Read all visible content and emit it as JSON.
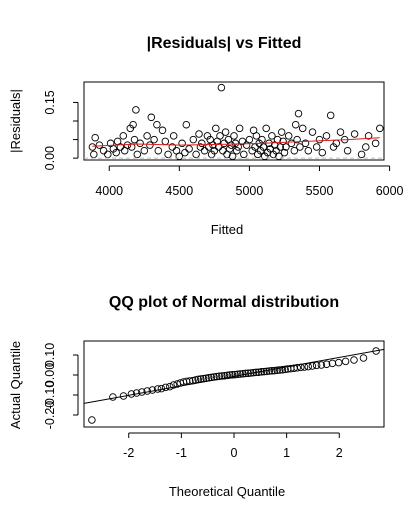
{
  "chart_data": [
    {
      "type": "scatter",
      "title": "|Residuals| vs Fitted",
      "xlabel": "Fitted",
      "ylabel": "|Residuals|",
      "xlim": [
        3820,
        5960
      ],
      "ylim": [
        -0.005,
        0.205
      ],
      "x_ticks": [
        4000,
        4500,
        5000,
        5500,
        6000
      ],
      "x_tick_labels": [
        "4000",
        "4500",
        "5000",
        "5500",
        "6000"
      ],
      "y_ticks": [
        0.0,
        0.05,
        0.1,
        0.15
      ],
      "y_tick_labels": [
        "0.00",
        "",
        "",
        "0.15"
      ],
      "series": [
        {
          "name": "residuals",
          "points": [
            [
              3880,
              0.03
            ],
            [
              3890,
              0.01
            ],
            [
              3900,
              0.055
            ],
            [
              3930,
              0.035
            ],
            [
              3960,
              0.02
            ],
            [
              3990,
              0.01
            ],
            [
              4010,
              0.04
            ],
            [
              4030,
              0.025
            ],
            [
              4050,
              0.015
            ],
            [
              4060,
              0.045
            ],
            [
              4080,
              0.03
            ],
            [
              4100,
              0.06
            ],
            [
              4110,
              0.02
            ],
            [
              4130,
              0.035
            ],
            [
              4150,
              0.08
            ],
            [
              4160,
              0.03
            ],
            [
              4170,
              0.09
            ],
            [
              4180,
              0.05
            ],
            [
              4190,
              0.13
            ],
            [
              4200,
              0.01
            ],
            [
              4220,
              0.04
            ],
            [
              4250,
              0.02
            ],
            [
              4270,
              0.06
            ],
            [
              4290,
              0.035
            ],
            [
              4300,
              0.11
            ],
            [
              4320,
              0.05
            ],
            [
              4340,
              0.09
            ],
            [
              4350,
              0.02
            ],
            [
              4380,
              0.075
            ],
            [
              4400,
              0.045
            ],
            [
              4420,
              0.01
            ],
            [
              4450,
              0.03
            ],
            [
              4460,
              0.06
            ],
            [
              4480,
              0.02
            ],
            [
              4500,
              0.005
            ],
            [
              4520,
              0.04
            ],
            [
              4540,
              0.015
            ],
            [
              4550,
              0.09
            ],
            [
              4570,
              0.025
            ],
            [
              4600,
              0.05
            ],
            [
              4620,
              0.01
            ],
            [
              4640,
              0.065
            ],
            [
              4650,
              0.03
            ],
            [
              4660,
              0.04
            ],
            [
              4680,
              0.02
            ],
            [
              4700,
              0.06
            ],
            [
              4710,
              0.03
            ],
            [
              4720,
              0.05
            ],
            [
              4730,
              0.01
            ],
            [
              4740,
              0.035
            ],
            [
              4750,
              0.02
            ],
            [
              4760,
              0.08
            ],
            [
              4770,
              0.045
            ],
            [
              4780,
              0.03
            ],
            [
              4790,
              0.06
            ],
            [
              4800,
              0.19
            ],
            [
              4810,
              0.02
            ],
            [
              4820,
              0.04
            ],
            [
              4830,
              0.07
            ],
            [
              4840,
              0.01
            ],
            [
              4850,
              0.05
            ],
            [
              4860,
              0.025
            ],
            [
              4870,
              0.035
            ],
            [
              4880,
              0.005
            ],
            [
              4890,
              0.06
            ],
            [
              4900,
              0.04
            ],
            [
              4910,
              0.02
            ],
            [
              4920,
              0.03
            ],
            [
              4930,
              0.08
            ],
            [
              4950,
              0.045
            ],
            [
              4960,
              0.01
            ],
            [
              4980,
              0.035
            ],
            [
              5000,
              0.05
            ],
            [
              5020,
              0.02
            ],
            [
              5030,
              0.075
            ],
            [
              5040,
              0.03
            ],
            [
              5050,
              0.06
            ],
            [
              5060,
              0.01
            ],
            [
              5070,
              0.04
            ],
            [
              5080,
              0.02
            ],
            [
              5090,
              0.05
            ],
            [
              5100,
              0.03
            ],
            [
              5110,
              0.005
            ],
            [
              5120,
              0.08
            ],
            [
              5130,
              0.015
            ],
            [
              5140,
              0.04
            ],
            [
              5150,
              0.025
            ],
            [
              5160,
              0.06
            ],
            [
              5170,
              0.01
            ],
            [
              5180,
              0.035
            ],
            [
              5190,
              0.02
            ],
            [
              5200,
              0.05
            ],
            [
              5210,
              0.005
            ],
            [
              5220,
              0.03
            ],
            [
              5230,
              0.07
            ],
            [
              5240,
              0.045
            ],
            [
              5250,
              0.015
            ],
            [
              5260,
              0.03
            ],
            [
              5280,
              0.06
            ],
            [
              5300,
              0.04
            ],
            [
              5320,
              0.02
            ],
            [
              5330,
              0.09
            ],
            [
              5340,
              0.05
            ],
            [
              5350,
              0.12
            ],
            [
              5360,
              0.03
            ],
            [
              5380,
              0.08
            ],
            [
              5400,
              0.04
            ],
            [
              5420,
              0.02
            ],
            [
              5450,
              0.07
            ],
            [
              5480,
              0.03
            ],
            [
              5500,
              0.05
            ],
            [
              5520,
              0.015
            ],
            [
              5550,
              0.06
            ],
            [
              5580,
              0.115
            ],
            [
              5600,
              0.03
            ],
            [
              5620,
              0.04
            ],
            [
              5650,
              0.07
            ],
            [
              5680,
              0.05
            ],
            [
              5700,
              0.02
            ],
            [
              5750,
              0.065
            ],
            [
              5800,
              0.01
            ],
            [
              5830,
              0.03
            ],
            [
              5850,
              0.06
            ],
            [
              5900,
              0.04
            ],
            [
              5930,
              0.08
            ]
          ]
        },
        {
          "name": "smooth",
          "type": "line",
          "color": "#e31a1c",
          "points": [
            [
              3880,
              0.032
            ],
            [
              4200,
              0.038
            ],
            [
              4500,
              0.035
            ],
            [
              4800,
              0.037
            ],
            [
              5100,
              0.04
            ],
            [
              5400,
              0.045
            ],
            [
              5700,
              0.05
            ],
            [
              5930,
              0.055
            ]
          ]
        },
        {
          "name": "baseline",
          "type": "hline",
          "color": "#bbbbbb",
          "y": 0.0
        }
      ]
    },
    {
      "type": "scatter",
      "title": "QQ plot of Normal distribution",
      "xlabel": "Theoretical Quantile",
      "ylabel": "Actual Quantile",
      "xlim": [
        -2.85,
        2.85
      ],
      "ylim": [
        -0.26,
        0.17
      ],
      "x_ticks": [
        -2,
        -1,
        0,
        1,
        2
      ],
      "x_tick_labels": [
        "-2",
        "-1",
        "0",
        "1",
        "2"
      ],
      "y_ticks": [
        -0.2,
        -0.1,
        0.0,
        0.1
      ],
      "y_tick_labels": [
        "-0.20",
        "-0.10",
        "0.00",
        "0.10"
      ],
      "series": [
        {
          "name": "sample_quantiles",
          "points": [
            [
              -2.7,
              -0.225
            ],
            [
              -2.3,
              -0.11
            ],
            [
              -2.1,
              -0.105
            ],
            [
              -1.95,
              -0.095
            ],
            [
              -1.85,
              -0.09
            ],
            [
              -1.75,
              -0.085
            ],
            [
              -1.65,
              -0.08
            ],
            [
              -1.55,
              -0.075
            ],
            [
              -1.45,
              -0.07
            ],
            [
              -1.38,
              -0.068
            ],
            [
              -1.3,
              -0.062
            ],
            [
              -1.22,
              -0.058
            ],
            [
              -1.15,
              -0.05
            ],
            [
              -1.08,
              -0.045
            ],
            [
              -1.02,
              -0.04
            ],
            [
              -0.96,
              -0.035
            ],
            [
              -0.9,
              -0.032
            ],
            [
              -0.84,
              -0.03
            ],
            [
              -0.78,
              -0.028
            ],
            [
              -0.73,
              -0.025
            ],
            [
              -0.68,
              -0.022
            ],
            [
              -0.63,
              -0.02
            ],
            [
              -0.58,
              -0.018
            ],
            [
              -0.53,
              -0.016
            ],
            [
              -0.48,
              -0.014
            ],
            [
              -0.43,
              -0.012
            ],
            [
              -0.38,
              -0.01
            ],
            [
              -0.33,
              -0.008
            ],
            [
              -0.28,
              -0.006
            ],
            [
              -0.23,
              -0.005
            ],
            [
              -0.18,
              -0.004
            ],
            [
              -0.13,
              -0.002
            ],
            [
              -0.08,
              0.0
            ],
            [
              -0.03,
              0.001
            ],
            [
              0.02,
              0.002
            ],
            [
              0.07,
              0.004
            ],
            [
              0.12,
              0.005
            ],
            [
              0.17,
              0.006
            ],
            [
              0.22,
              0.008
            ],
            [
              0.27,
              0.009
            ],
            [
              0.32,
              0.01
            ],
            [
              0.37,
              0.012
            ],
            [
              0.42,
              0.013
            ],
            [
              0.47,
              0.014
            ],
            [
              0.52,
              0.016
            ],
            [
              0.57,
              0.017
            ],
            [
              0.62,
              0.018
            ],
            [
              0.67,
              0.02
            ],
            [
              0.72,
              0.021
            ],
            [
              0.77,
              0.022
            ],
            [
              0.82,
              0.024
            ],
            [
              0.87,
              0.025
            ],
            [
              0.92,
              0.026
            ],
            [
              0.97,
              0.028
            ],
            [
              1.02,
              0.03
            ],
            [
              1.08,
              0.032
            ],
            [
              1.14,
              0.034
            ],
            [
              1.2,
              0.036
            ],
            [
              1.27,
              0.038
            ],
            [
              1.34,
              0.04
            ],
            [
              1.41,
              0.042
            ],
            [
              1.49,
              0.045
            ],
            [
              1.57,
              0.048
            ],
            [
              1.66,
              0.05
            ],
            [
              1.76,
              0.054
            ],
            [
              1.87,
              0.058
            ],
            [
              1.99,
              0.062
            ],
            [
              2.12,
              0.068
            ],
            [
              2.28,
              0.075
            ],
            [
              2.46,
              0.085
            ],
            [
              2.7,
              0.12
            ]
          ]
        },
        {
          "name": "reference_line",
          "type": "line",
          "color": "#000000",
          "points": [
            [
              -2.85,
              -0.142
            ],
            [
              2.85,
              0.128
            ]
          ]
        }
      ]
    }
  ]
}
